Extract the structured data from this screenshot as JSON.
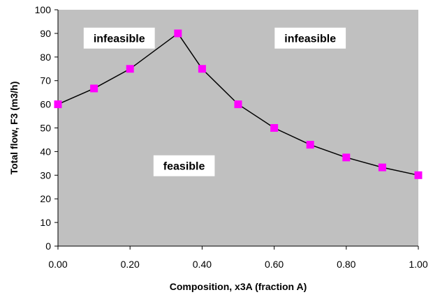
{
  "chart_data": {
    "type": "line",
    "xlabel": "Composition, x3A (fraction A)",
    "ylabel": "Total flow, F3 (m3/h)",
    "xlim": [
      0,
      1
    ],
    "ylim": [
      0,
      100
    ],
    "x_ticks": [
      "0.00",
      "0.20",
      "0.40",
      "0.60",
      "0.80",
      "1.00"
    ],
    "y_ticks": [
      "0",
      "10",
      "20",
      "30",
      "40",
      "50",
      "60",
      "70",
      "80",
      "90",
      "100"
    ],
    "grid": false,
    "legend": "none",
    "plot_background": "#c0c0c0",
    "line_color": "#000000",
    "marker_color": "#ff00ff",
    "marker_shape": "square",
    "series": [
      {
        "x": [
          0.0,
          0.1,
          0.2,
          0.333,
          0.4,
          0.5,
          0.6,
          0.7,
          0.8,
          0.9,
          1.0
        ],
        "values": [
          60,
          66.7,
          75,
          90,
          75,
          60,
          50,
          42.9,
          37.5,
          33.3,
          30
        ]
      }
    ],
    "annotations": [
      {
        "text": "infeasible",
        "x": 0.17,
        "y": 88
      },
      {
        "text": "infeasible",
        "x": 0.7,
        "y": 88
      },
      {
        "text": "feasible",
        "x": 0.35,
        "y": 34
      }
    ]
  }
}
